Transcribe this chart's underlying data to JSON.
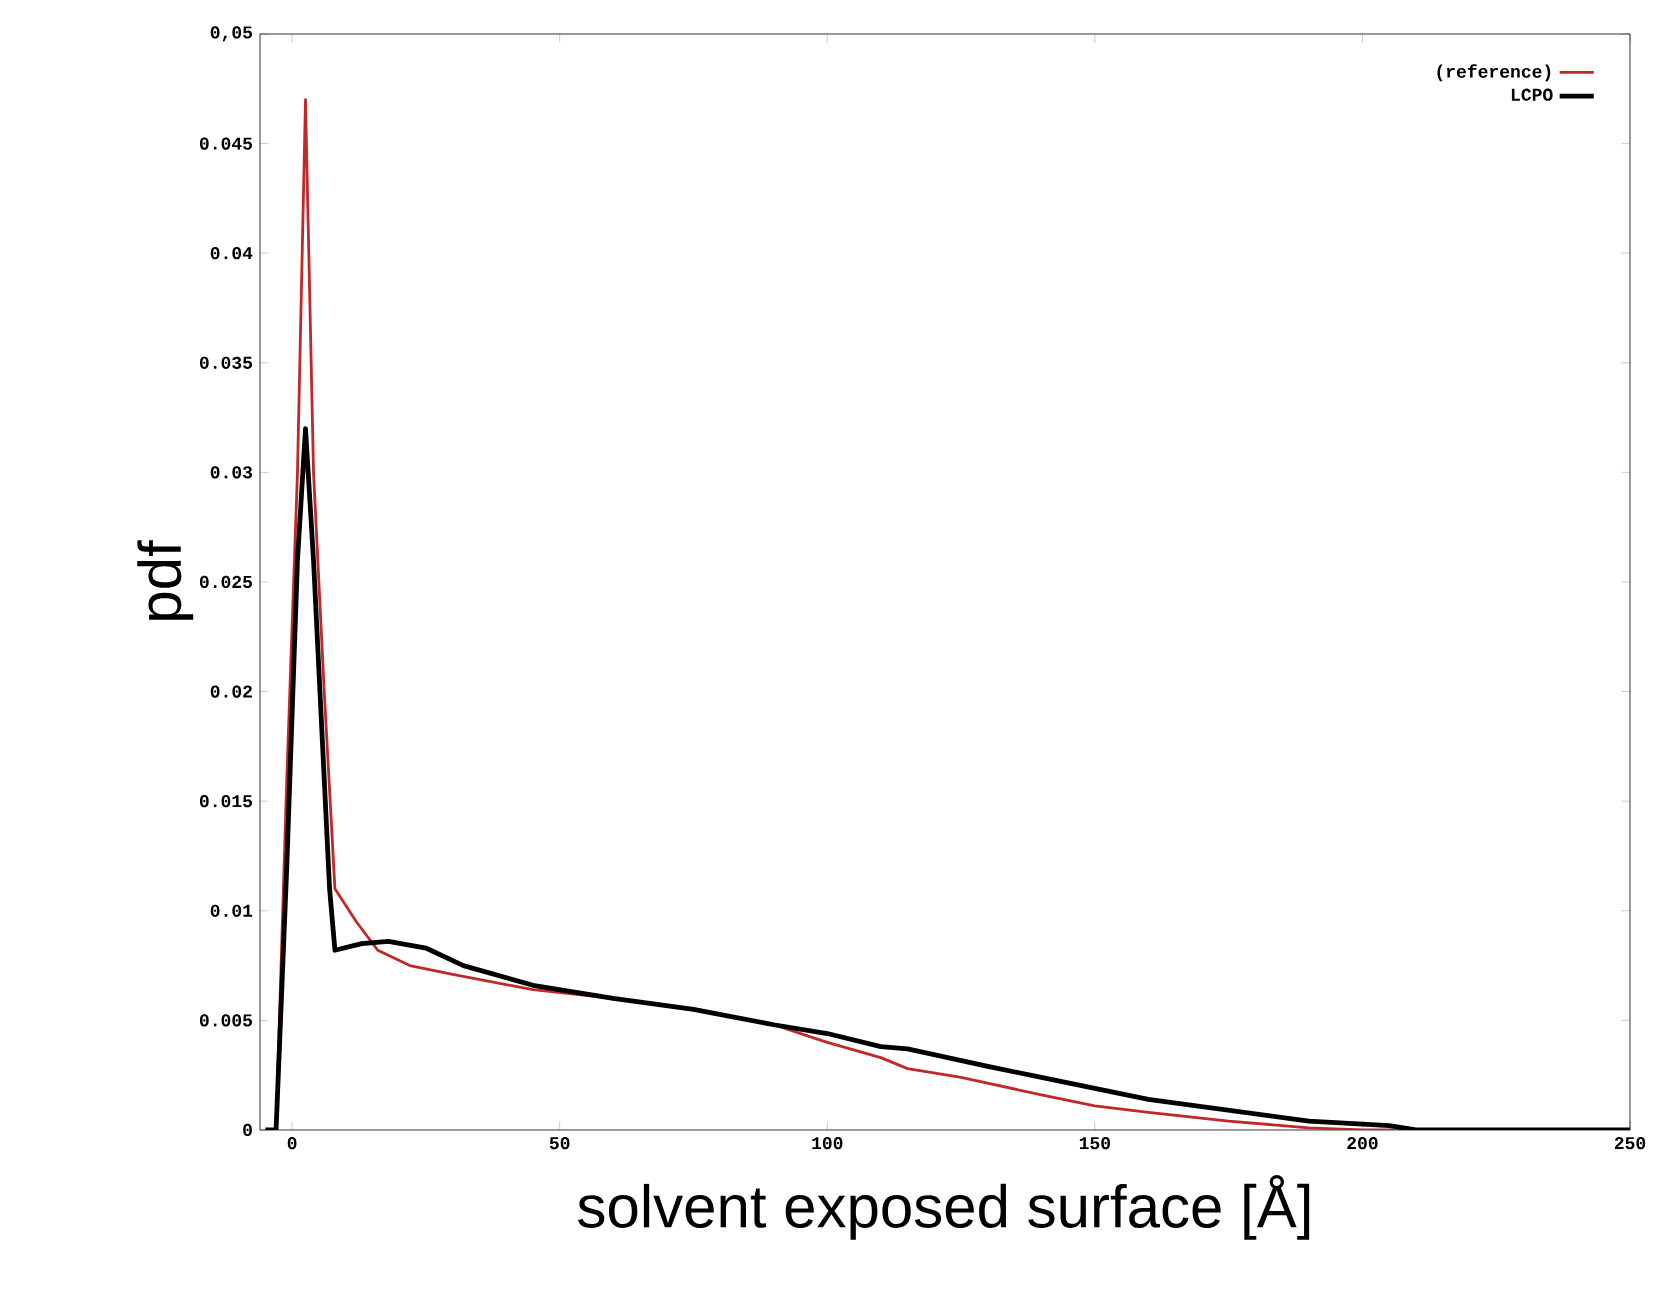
{
  "chart_data": {
    "type": "line",
    "xlabel": "solvent exposed surface [Å]",
    "ylabel": "pdf",
    "xlim": [
      -6,
      250
    ],
    "ylim": [
      0,
      0.05
    ],
    "xticks": [
      0,
      50,
      100,
      150,
      200,
      250
    ],
    "yticks": [
      0,
      {
        "value": 0.005,
        "label": "0.005"
      },
      {
        "value": 0.01,
        "label": "0.01"
      },
      {
        "value": 0.015,
        "label": "0.015"
      },
      {
        "value": 0.02,
        "label": "0.02"
      },
      {
        "value": 0.025,
        "label": "0.025"
      },
      {
        "value": 0.03,
        "label": "0.03"
      },
      {
        "value": 0.035,
        "label": "0.035"
      },
      {
        "value": 0.04,
        "label": "0.04"
      },
      {
        "value": 0.045,
        "label": "0.045"
      },
      {
        "value": 0.05,
        "label": "0,05"
      }
    ],
    "legend": "top right",
    "grid": false,
    "marker": "none",
    "line_style": "solid",
    "series": [
      {
        "name": "(reference)",
        "color": "#c0282a",
        "x": [
          -3,
          -1,
          1,
          2.5,
          4,
          6,
          8,
          12,
          16,
          22,
          30,
          45,
          60,
          75,
          90,
          100,
          110,
          115,
          125,
          140,
          150,
          160,
          175,
          190,
          200,
          250
        ],
        "values": [
          0,
          0.016,
          0.03,
          0.047,
          0.03,
          0.02,
          0.011,
          0.0095,
          0.0082,
          0.0075,
          0.0071,
          0.0064,
          0.006,
          0.0055,
          0.0048,
          0.004,
          0.0033,
          0.0028,
          0.0024,
          0.0016,
          0.0011,
          0.0008,
          0.0004,
          0.0001,
          0,
          0
        ]
      },
      {
        "name": "LCPO",
        "color": "#000000",
        "x": [
          -5,
          -3,
          -1,
          1,
          2.5,
          4,
          7,
          8,
          13,
          18,
          25,
          32,
          45,
          60,
          75,
          90,
          100,
          110,
          115,
          130,
          140,
          150,
          160,
          175,
          190,
          205,
          210,
          250
        ],
        "values": [
          0,
          0,
          0.012,
          0.026,
          0.032,
          0.026,
          0.011,
          0.0082,
          0.0085,
          0.0086,
          0.0083,
          0.0075,
          0.0066,
          0.006,
          0.0055,
          0.0048,
          0.0044,
          0.0038,
          0.0037,
          0.0029,
          0.0024,
          0.0019,
          0.0014,
          0.0009,
          0.0004,
          0.0002,
          0,
          0
        ]
      }
    ]
  }
}
